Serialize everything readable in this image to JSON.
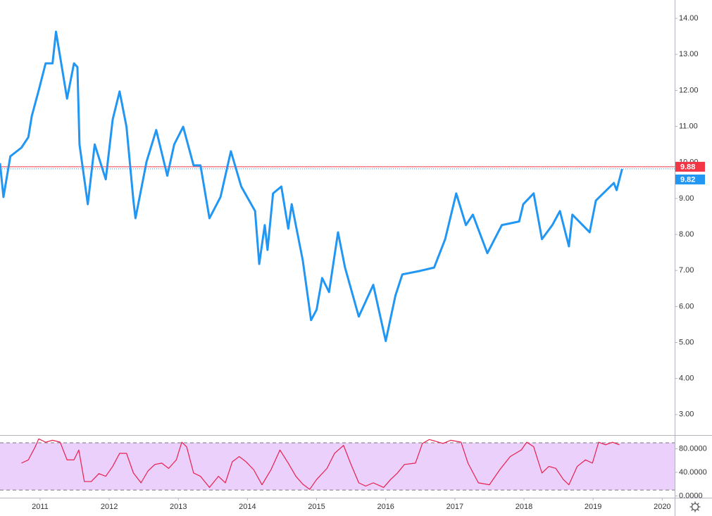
{
  "chart_data": [
    {
      "type": "line",
      "color": "#2196f3",
      "x": [
        2010.42,
        2010.47,
        2010.57,
        2010.73,
        2010.83,
        2010.88,
        2010.98,
        2011.08,
        2011.18,
        2011.23,
        2011.39,
        2011.49,
        2011.54,
        2011.57,
        2011.69,
        2011.79,
        2011.95,
        2012.05,
        2012.15,
        2012.25,
        2012.35,
        2012.38,
        2012.54,
        2012.68,
        2012.84,
        2012.94,
        2013.07,
        2013.22,
        2013.32,
        2013.45,
        2013.61,
        2013.76,
        2013.91,
        2014.11,
        2014.17,
        2014.25,
        2014.29,
        2014.37,
        2014.49,
        2014.59,
        2014.64,
        2014.8,
        2014.92,
        2015.0,
        2015.08,
        2015.18,
        2015.31,
        2015.41,
        2015.61,
        2015.82,
        2016.0,
        2016.14,
        2016.24,
        2016.5,
        2016.7,
        2016.86,
        2017.02,
        2017.16,
        2017.26,
        2017.47,
        2017.68,
        2017.93,
        2017.99,
        2018.14,
        2018.26,
        2018.41,
        2018.52,
        2018.65,
        2018.7,
        2018.95,
        2019.04,
        2019.3,
        2019.34,
        2019.42
      ],
      "values": [
        9.98,
        9.04,
        10.17,
        10.41,
        10.7,
        11.29,
        12.0,
        12.75,
        12.75,
        13.63,
        11.77,
        12.75,
        12.65,
        10.5,
        8.84,
        10.5,
        9.53,
        11.19,
        11.97,
        10.99,
        8.94,
        8.45,
        10.02,
        10.9,
        9.63,
        10.5,
        10.99,
        9.92,
        9.92,
        8.45,
        9.04,
        10.31,
        9.33,
        8.65,
        7.18,
        8.26,
        7.57,
        9.14,
        9.33,
        8.16,
        8.84,
        7.28,
        5.62,
        5.91,
        6.79,
        6.4,
        8.06,
        7.09,
        5.72,
        6.6,
        5.04,
        6.3,
        6.89,
        6.99,
        7.08,
        7.87,
        9.14,
        8.26,
        8.55,
        7.48,
        8.26,
        8.36,
        8.84,
        9.14,
        7.87,
        8.26,
        8.65,
        7.67,
        8.55,
        8.06,
        8.94,
        9.43,
        9.23,
        9.82
      ],
      "xlim": [
        2010.42,
        2020.18
      ],
      "ylim": [
        2.43,
        14.51
      ],
      "yticks": [
        {
          "value": 3,
          "label": "3.00"
        },
        {
          "value": 4,
          "label": "4.00"
        },
        {
          "value": 5,
          "label": "5.00"
        },
        {
          "value": 6,
          "label": "6.00"
        },
        {
          "value": 7,
          "label": "7.00"
        },
        {
          "value": 8,
          "label": "8.00"
        },
        {
          "value": 9,
          "label": "9.00"
        },
        {
          "value": 10,
          "label": "10.00"
        },
        {
          "value": 11,
          "label": "11.00"
        },
        {
          "value": 12,
          "label": "12.00"
        },
        {
          "value": 13,
          "label": "13.00"
        },
        {
          "value": 14,
          "label": "14.00"
        }
      ],
      "price_lines": [
        {
          "value": 9.88,
          "color": "#f23645",
          "style": "solid"
        },
        {
          "value": 9.82,
          "color": "#2196f3",
          "style": "dotted"
        }
      ],
      "grid": false
    },
    {
      "type": "line",
      "color": "#e91e4d",
      "x": [
        2010.73,
        2010.83,
        2010.93,
        2010.98,
        2011.08,
        2011.18,
        2011.29,
        2011.39,
        2011.49,
        2011.56,
        2011.64,
        2011.74,
        2011.85,
        2011.95,
        2012.05,
        2012.15,
        2012.25,
        2012.35,
        2012.46,
        2012.56,
        2012.66,
        2012.76,
        2012.86,
        2012.97,
        2013.05,
        2013.12,
        2013.22,
        2013.32,
        2013.45,
        2013.58,
        2013.68,
        2013.78,
        2013.88,
        2013.98,
        2014.09,
        2014.21,
        2014.34,
        2014.47,
        2014.59,
        2014.7,
        2014.8,
        2014.9,
        2015.0,
        2015.15,
        2015.26,
        2015.39,
        2015.49,
        2015.61,
        2015.71,
        2015.82,
        2015.97,
        2016.07,
        2016.17,
        2016.27,
        2016.43,
        2016.53,
        2016.63,
        2016.83,
        2016.94,
        2017.09,
        2017.19,
        2017.34,
        2017.5,
        2017.65,
        2017.8,
        2017.96,
        2018.04,
        2018.14,
        2018.26,
        2018.36,
        2018.46,
        2018.57,
        2018.65,
        2018.77,
        2018.89,
        2018.99,
        2019.08,
        2019.18,
        2019.28,
        2019.38
      ],
      "values": [
        55.6,
        61.1,
        83.3,
        96.7,
        91.1,
        94.4,
        91.1,
        61.1,
        61.1,
        77.8,
        24.4,
        24.4,
        37.8,
        33.3,
        50,
        72.2,
        72.2,
        38.9,
        22.2,
        42.2,
        53.3,
        55.6,
        46.7,
        61.1,
        91.1,
        83.3,
        38.9,
        33.3,
        14.4,
        33.3,
        22.2,
        57.8,
        66.7,
        57.8,
        44.4,
        18.9,
        44.4,
        77.8,
        55.6,
        33.3,
        20,
        11.1,
        27.8,
        46.7,
        72.2,
        85.6,
        55.6,
        22.2,
        16.7,
        22.2,
        14.4,
        27.8,
        38.9,
        53.3,
        55.6,
        88.9,
        95.6,
        88.9,
        94.4,
        91.1,
        55.6,
        22.2,
        18.9,
        44.4,
        66.7,
        77.8,
        91.1,
        83.3,
        38.9,
        50,
        46.7,
        27.8,
        18.9,
        50,
        61.1,
        55.6,
        91.1,
        86.7,
        91.1,
        86.7
      ],
      "xlim": [
        2010.42,
        2020.18
      ],
      "ylim": [
        -3,
        102
      ],
      "yticks": [
        {
          "value": 0,
          "label": "0.0000"
        },
        {
          "value": 40,
          "label": "40.0000"
        },
        {
          "value": 80,
          "label": "80.0000"
        }
      ],
      "xticks": [
        2011,
        2012,
        2013,
        2014,
        2015,
        2016,
        2017,
        2018,
        2019,
        2020
      ],
      "bands": [
        90,
        10
      ],
      "band_color": "#ecd0fc",
      "grid": false
    }
  ]
}
